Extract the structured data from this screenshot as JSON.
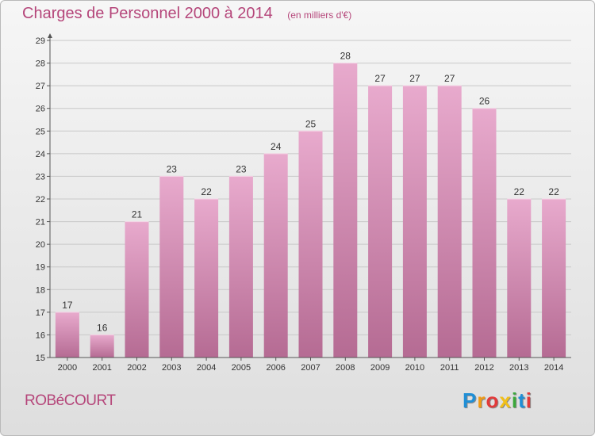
{
  "header": {
    "title": "Charges de Personnel 2000 à 2014",
    "subtitle": "(en milliers d'€)"
  },
  "footer": {
    "commune": "ROBéCOURT",
    "brand_letters": [
      "P",
      "r",
      "o",
      "x",
      "i",
      "t",
      "i"
    ],
    "brand_colors": [
      "#1f8fd6",
      "#f29b13",
      "#e23a3a",
      "#f2c018",
      "#3aa83a",
      "#1f8fd6",
      "#e23a3a"
    ]
  },
  "colors": {
    "bar_top": "#e8aacd",
    "bar_bottom": "#b56b93",
    "accent": "#b5467a"
  },
  "chart_data": {
    "type": "bar",
    "categories": [
      "2000",
      "2001",
      "2002",
      "2003",
      "2004",
      "2005",
      "2006",
      "2007",
      "2008",
      "2009",
      "2010",
      "2011",
      "2012",
      "2013",
      "2014"
    ],
    "values": [
      17,
      16,
      21,
      23,
      22,
      23,
      24,
      25,
      28,
      27,
      27,
      27,
      26,
      22,
      22
    ],
    "title": "Charges de Personnel 2000 à 2014",
    "subtitle": "(en milliers d'€)",
    "ylim": [
      15,
      29
    ],
    "yticks": [
      15,
      16,
      17,
      18,
      19,
      20,
      21,
      22,
      23,
      24,
      25,
      26,
      27,
      28,
      29
    ],
    "grid": true,
    "legend": "none"
  }
}
